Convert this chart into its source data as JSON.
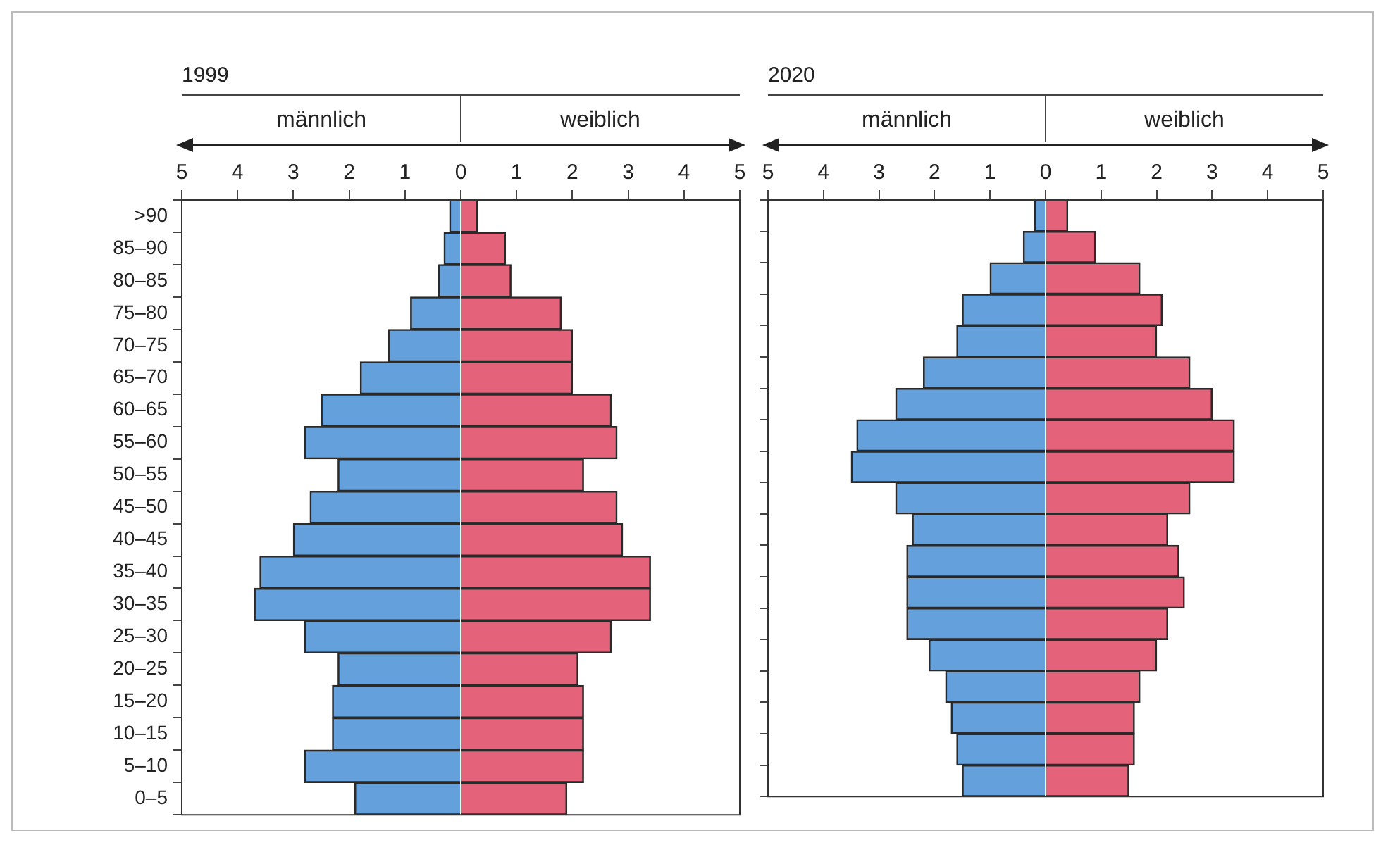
{
  "chart_data": [
    {
      "type": "bar",
      "orientation": "horizontal",
      "stacked": true,
      "title": "1999",
      "annotations": [
        "männlich",
        "weiblich"
      ],
      "categories": [
        ">90",
        "85–90",
        "80–85",
        "75–80",
        "70–75",
        "65–70",
        "60–65",
        "55–60",
        "50–55",
        "45–50",
        "40–45",
        "35–40",
        "30–35",
        "25–30",
        "20–25",
        "15–20",
        "10–15",
        "5–10",
        "0–5"
      ],
      "series": [
        {
          "color": "#64a0dc",
          "values": [
            -0.2,
            -0.3,
            -0.4,
            -0.9,
            -1.3,
            -1.8,
            -2.5,
            -2.8,
            -2.2,
            -2.7,
            -3.0,
            -3.6,
            -3.7,
            -2.8,
            -2.2,
            -2.3,
            -2.3,
            -2.8,
            -1.9
          ]
        },
        {
          "color": "#e4637a",
          "values": [
            0.3,
            0.8,
            0.9,
            1.8,
            2.0,
            2.0,
            2.7,
            2.8,
            2.2,
            2.8,
            2.9,
            3.4,
            3.4,
            2.7,
            2.1,
            2.2,
            2.2,
            2.2,
            1.9
          ]
        }
      ],
      "xlim": [
        -5,
        5
      ],
      "xticks": [
        {
          "value": -5,
          "label": "5"
        },
        {
          "value": -4,
          "label": "4"
        },
        {
          "value": -3,
          "label": "3"
        },
        {
          "value": -2,
          "label": "2"
        },
        {
          "value": -1,
          "label": "1"
        },
        0,
        1,
        2,
        3,
        4,
        5
      ]
    },
    {
      "type": "bar",
      "orientation": "horizontal",
      "stacked": true,
      "title": "2020",
      "annotations": [
        "männlich",
        "weiblich"
      ],
      "categories": [
        null,
        null,
        null,
        null,
        null,
        null,
        null,
        null,
        null,
        null,
        null,
        null,
        null,
        null,
        null,
        null,
        null,
        null,
        null
      ],
      "series": [
        {
          "color": "#64a0dc",
          "values": [
            -0.2,
            -0.4,
            -1.0,
            -1.5,
            -1.6,
            -2.2,
            -2.7,
            -3.4,
            -3.5,
            -2.7,
            -2.4,
            -2.5,
            -2.5,
            -2.5,
            -2.1,
            -1.8,
            -1.7,
            -1.6,
            -1.5
          ]
        },
        {
          "color": "#e4637a",
          "values": [
            0.4,
            0.9,
            1.7,
            2.1,
            2.0,
            2.6,
            3.0,
            3.4,
            3.4,
            2.6,
            2.2,
            2.4,
            2.5,
            2.2,
            2.0,
            1.7,
            1.6,
            1.6,
            1.5
          ]
        }
      ],
      "xlim": [
        -5,
        5
      ],
      "xticks": [
        {
          "value": -5,
          "label": "5"
        },
        {
          "value": -4,
          "label": "4"
        },
        {
          "value": -3,
          "label": "3"
        },
        {
          "value": -2,
          "label": "2"
        },
        {
          "value": -1,
          "label": "1"
        },
        0,
        1,
        2,
        3,
        4,
        5
      ]
    }
  ]
}
